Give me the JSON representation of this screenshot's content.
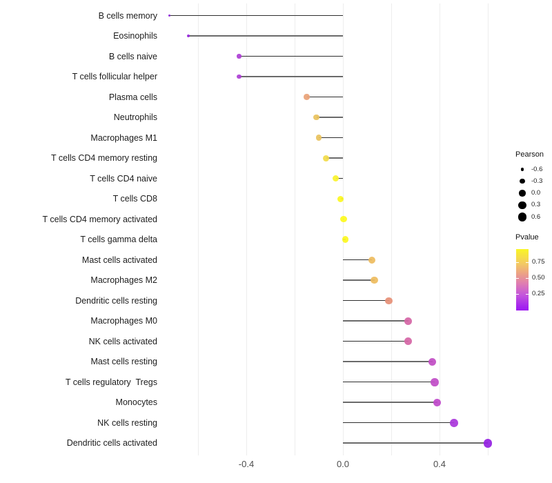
{
  "chart_data": {
    "type": "lollipop",
    "title": "",
    "xlabel": "",
    "ylabel": "",
    "xlim": [
      -0.75,
      0.65
    ],
    "x_ticks": [
      -0.4,
      0.0,
      0.4
    ],
    "x_tick_labels": [
      "-0.4",
      "0.0",
      "0.4"
    ],
    "gridline_values": [
      -0.6,
      -0.4,
      -0.2,
      0.0,
      0.2,
      0.4,
      0.6
    ],
    "grid_on": true,
    "legend_position": "right",
    "points": [
      {
        "label": "B cells memory",
        "pearson": -0.72,
        "color": "#8B22D6"
      },
      {
        "label": "Eosinophils",
        "pearson": -0.64,
        "color": "#9727DC"
      },
      {
        "label": "B cells naive",
        "pearson": -0.43,
        "color": "#AD40D5"
      },
      {
        "label": "T cells follicular helper",
        "pearson": -0.43,
        "color": "#AD40D5"
      },
      {
        "label": "Plasma cells",
        "pearson": -0.15,
        "color": "#E9A379"
      },
      {
        "label": "Neutrophils",
        "pearson": -0.11,
        "color": "#EAC35F"
      },
      {
        "label": "Macrophages M1",
        "pearson": -0.1,
        "color": "#EAC35F"
      },
      {
        "label": "T cells CD4 memory resting",
        "pearson": -0.07,
        "color": "#F2DC4A"
      },
      {
        "label": "T cells CD4 naive",
        "pearson": -0.03,
        "color": "#FAF32D"
      },
      {
        "label": "T cells CD8",
        "pearson": -0.01,
        "color": "#FCF822"
      },
      {
        "label": "T cells CD4 memory activated",
        "pearson": 0.003,
        "color": "#FDFA1E"
      },
      {
        "label": "T cells gamma delta",
        "pearson": 0.01,
        "color": "#FCF822"
      },
      {
        "label": "Mast cells activated",
        "pearson": 0.12,
        "color": "#EEBC60"
      },
      {
        "label": "Macrophages M2",
        "pearson": 0.13,
        "color": "#EEBC60"
      },
      {
        "label": "Dendritic cells resting",
        "pearson": 0.19,
        "color": "#E69077"
      },
      {
        "label": "Macrophages M0",
        "pearson": 0.27,
        "color": "#D566A6"
      },
      {
        "label": "NK cells activated",
        "pearson": 0.27,
        "color": "#D566A6"
      },
      {
        "label": "Mast cells resting",
        "pearson": 0.37,
        "color": "#C24FC5"
      },
      {
        "label": "T cells regulatory  Tregs",
        "pearson": 0.38,
        "color": "#C14DC7"
      },
      {
        "label": "Monocytes",
        "pearson": 0.39,
        "color": "#BF49CA"
      },
      {
        "label": "NK cells resting",
        "pearson": 0.46,
        "color": "#AA37DC"
      },
      {
        "label": "Dendritic cells activated",
        "pearson": 0.6,
        "color": "#9421E2"
      }
    ],
    "legend": {
      "size": {
        "title": "Pearson",
        "entries": [
          "-0.6",
          "-0.3",
          "0.0",
          "0.3",
          "0.6"
        ],
        "values": [
          -0.6,
          -0.3,
          0.0,
          0.3,
          0.6
        ],
        "dot_color": "#000000"
      },
      "color": {
        "title": "Pvalue",
        "tick_labels": [
          "0.75",
          "0.50",
          "0.25"
        ],
        "tick_values": [
          0.75,
          0.5,
          0.25
        ],
        "gradient_top_color": "#F9F626",
        "gradient_mid_color": "#DE7BB4",
        "gradient_bottom_color": "#A01EF0"
      }
    }
  }
}
